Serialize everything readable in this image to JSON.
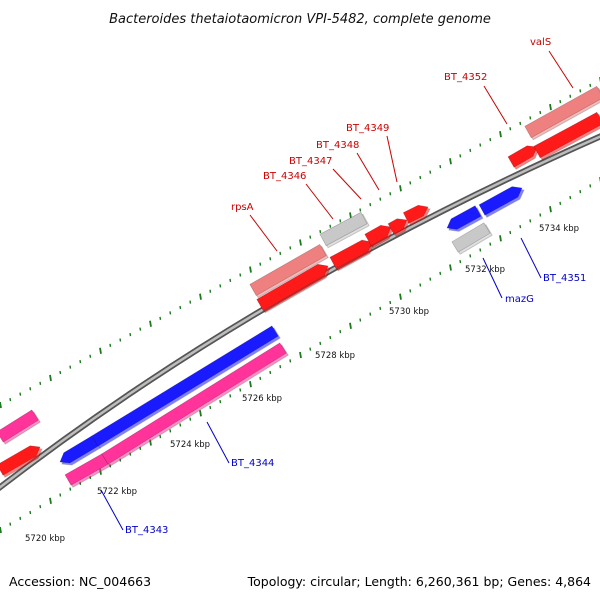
{
  "title": "Bacteroides thetaiotaomicron VPI-5482, complete genome",
  "footer": {
    "accession": "Accession: NC_004663",
    "summary": "Topology: circular; Length: 6,260,361 bp; Genes: 4,864"
  },
  "colors": {
    "backbone": "#8c8c8c",
    "tick": "#1b7a1b",
    "label_forward": "#cc0000",
    "label_reverse": "#0000cc",
    "cds_red": "#ff1a1a",
    "cds_blue": "#1a1aff",
    "cds_pink": "#ff3399",
    "rna_pink": "#ee8080",
    "other_gray": "#c8c8c8"
  },
  "scale_labels": [
    {
      "kbp": 5720,
      "text": "5720 kbp"
    },
    {
      "kbp": 5722,
      "text": "5722 kbp"
    },
    {
      "kbp": 5724,
      "text": "5724 kbp"
    },
    {
      "kbp": 5726,
      "text": "5726 kbp"
    },
    {
      "kbp": 5728,
      "text": "5728 kbp"
    },
    {
      "kbp": 5730,
      "text": "5730 kbp"
    },
    {
      "kbp": 5732,
      "text": "5732 kbp"
    },
    {
      "kbp": 5734,
      "text": "5734 kbp"
    }
  ],
  "gene_labels": [
    {
      "text": "valS",
      "strand": "forward"
    },
    {
      "text": "BT_4352",
      "strand": "forward"
    },
    {
      "text": "BT_4349",
      "strand": "forward"
    },
    {
      "text": "BT_4348",
      "strand": "forward"
    },
    {
      "text": "BT_4347",
      "strand": "forward"
    },
    {
      "text": "BT_4346",
      "strand": "forward"
    },
    {
      "text": "rpsA",
      "strand": "forward"
    },
    {
      "text": "BT_4351",
      "strand": "reverse"
    },
    {
      "text": "mazG",
      "strand": "reverse"
    },
    {
      "text": "BT_4344",
      "strand": "reverse"
    },
    {
      "text": "BT_4343",
      "strand": "reverse"
    }
  ]
}
